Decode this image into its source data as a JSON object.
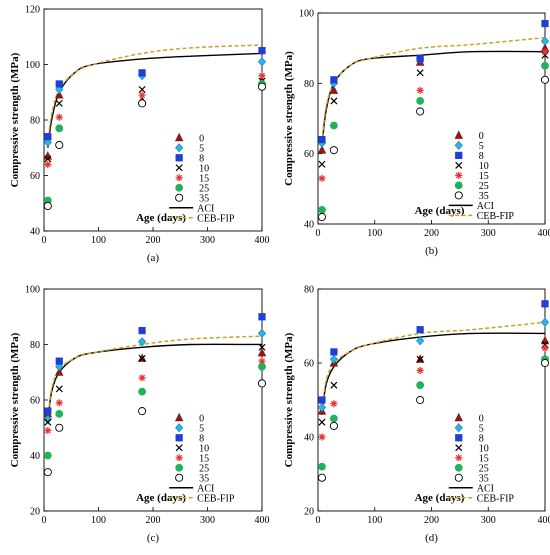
{
  "chart_data": [
    {
      "type": "scatter",
      "panel_label": "(a)",
      "xlabel": "Age (days)",
      "ylabel": "Compressive strength (MPa)",
      "xlim": [
        0,
        400
      ],
      "ylim": [
        40,
        120
      ],
      "xticks": [
        0,
        100,
        200,
        300,
        400
      ],
      "yticks": [
        40,
        60,
        80,
        100,
        120
      ],
      "grid": false,
      "legend_position": "bottom-right",
      "x": [
        7,
        28,
        180,
        400
      ],
      "series": [
        {
          "name": "0",
          "values": [
            67,
            89,
            87,
            94
          ]
        },
        {
          "name": "5",
          "values": [
            72,
            91,
            96,
            101
          ]
        },
        {
          "name": "8",
          "values": [
            74,
            93,
            97,
            105
          ]
        },
        {
          "name": "10",
          "values": [
            66,
            86,
            91,
            94
          ]
        },
        {
          "name": "15",
          "values": [
            64,
            81,
            89,
            96
          ]
        },
        {
          "name": "25",
          "values": [
            51,
            77,
            86,
            93
          ]
        },
        {
          "name": "35",
          "values": [
            49,
            71,
            86,
            92
          ]
        }
      ],
      "curves": [
        {
          "name": "ACI",
          "x": [
            7,
            14,
            28,
            56,
            90,
            180,
            270,
            400
          ],
          "y": [
            70,
            80,
            90,
            97,
            100,
            102,
            103,
            104
          ]
        },
        {
          "name": "CEB-FIP",
          "x": [
            7,
            14,
            28,
            56,
            90,
            180,
            270,
            400
          ],
          "y": [
            72,
            82,
            91,
            97,
            100,
            104,
            106,
            107
          ]
        }
      ]
    },
    {
      "type": "scatter",
      "panel_label": "(b)",
      "xlabel": "Age (days)",
      "ylabel": "Compressive strength (MPa)",
      "xlim": [
        0,
        400
      ],
      "ylim": [
        40,
        100
      ],
      "xticks": [
        0,
        100,
        200,
        300,
        400
      ],
      "yticks": [
        40,
        60,
        80,
        100
      ],
      "grid": false,
      "legend_position": "bottom-right",
      "x": [
        7,
        28,
        180,
        400
      ],
      "series": [
        {
          "name": "0",
          "values": [
            61,
            78,
            86,
            90
          ]
        },
        {
          "name": "5",
          "values": [
            63,
            80,
            87,
            92
          ]
        },
        {
          "name": "8",
          "values": [
            64,
            81,
            87,
            97
          ]
        },
        {
          "name": "10",
          "values": [
            57,
            75,
            83,
            88
          ]
        },
        {
          "name": "15",
          "values": [
            53,
            68,
            78,
            89
          ]
        },
        {
          "name": "25",
          "values": [
            44,
            68,
            75,
            85
          ]
        },
        {
          "name": "35",
          "values": [
            42,
            61,
            72,
            81
          ]
        }
      ],
      "curves": [
        {
          "name": "ACI",
          "x": [
            7,
            14,
            28,
            56,
            90,
            180,
            270,
            400
          ],
          "y": [
            62,
            72,
            80,
            85,
            87,
            88,
            89,
            89
          ]
        },
        {
          "name": "CEB-FIP",
          "x": [
            7,
            14,
            28,
            56,
            90,
            180,
            270,
            400
          ],
          "y": [
            63,
            73,
            80,
            85,
            87,
            90,
            91,
            93
          ]
        }
      ]
    },
    {
      "type": "scatter",
      "panel_label": "(c)",
      "xlabel": "Age (days)",
      "ylabel": "Compressive strength (MPa)",
      "xlim": [
        0,
        400
      ],
      "ylim": [
        20,
        100
      ],
      "xticks": [
        0,
        100,
        200,
        300,
        400
      ],
      "yticks": [
        20,
        40,
        60,
        80,
        100
      ],
      "grid": false,
      "legend_position": "bottom-right",
      "x": [
        7,
        28,
        180,
        400
      ],
      "series": [
        {
          "name": "0",
          "values": [
            55,
            70,
            75,
            77
          ]
        },
        {
          "name": "5",
          "values": [
            53,
            72,
            81,
            84
          ]
        },
        {
          "name": "8",
          "values": [
            56,
            74,
            85,
            90
          ]
        },
        {
          "name": "10",
          "values": [
            52,
            64,
            75,
            79
          ]
        },
        {
          "name": "15",
          "values": [
            49,
            59,
            68,
            74
          ]
        },
        {
          "name": "25",
          "values": [
            40,
            55,
            63,
            72
          ]
        },
        {
          "name": "35",
          "values": [
            34,
            50,
            56,
            66
          ]
        }
      ],
      "curves": [
        {
          "name": "ACI",
          "x": [
            7,
            14,
            28,
            56,
            90,
            180,
            270,
            400
          ],
          "y": [
            52,
            63,
            70,
            75,
            77,
            79,
            80,
            80
          ]
        },
        {
          "name": "CEB-FIP",
          "x": [
            7,
            14,
            28,
            56,
            90,
            180,
            270,
            400
          ],
          "y": [
            53,
            64,
            71,
            75,
            77,
            80,
            82,
            83
          ]
        }
      ]
    },
    {
      "type": "scatter",
      "panel_label": "(d)",
      "xlabel": "Age (days)",
      "ylabel": "Compressive strength (MPa)",
      "xlim": [
        0,
        400
      ],
      "ylim": [
        20,
        80
      ],
      "xticks": [
        0,
        100,
        200,
        300,
        400
      ],
      "yticks": [
        20,
        40,
        60,
        80
      ],
      "grid": false,
      "legend_position": "bottom-right",
      "x": [
        7,
        28,
        180,
        400
      ],
      "series": [
        {
          "name": "0",
          "values": [
            47,
            60,
            61,
            66
          ]
        },
        {
          "name": "5",
          "values": [
            48,
            61,
            66,
            71
          ]
        },
        {
          "name": "8",
          "values": [
            50,
            63,
            69,
            76
          ]
        },
        {
          "name": "10",
          "values": [
            44,
            54,
            61,
            65
          ]
        },
        {
          "name": "15",
          "values": [
            40,
            49,
            58,
            64
          ]
        },
        {
          "name": "25",
          "values": [
            32,
            45,
            54,
            61
          ]
        },
        {
          "name": "35",
          "values": [
            29,
            43,
            50,
            60
          ]
        }
      ],
      "curves": [
        {
          "name": "ACI",
          "x": [
            7,
            14,
            28,
            56,
            90,
            180,
            270,
            400
          ],
          "y": [
            46,
            54,
            59,
            63,
            65,
            67,
            68,
            68
          ]
        },
        {
          "name": "CEB-FIP",
          "x": [
            7,
            14,
            28,
            56,
            90,
            180,
            270,
            400
          ],
          "y": [
            47,
            55,
            60,
            63,
            65,
            68,
            69,
            71
          ]
        }
      ]
    }
  ],
  "styles": {
    "markers": [
      {
        "series": "0",
        "shape": "triangle",
        "fill": "#8b1a1a",
        "stroke": "#8b1a1a"
      },
      {
        "series": "5",
        "shape": "diamond",
        "fill": "#29b6e8",
        "stroke": "#1f8fb8"
      },
      {
        "series": "8",
        "shape": "square",
        "fill": "#1f3fd6",
        "stroke": "#1f3fd6"
      },
      {
        "series": "10",
        "shape": "x",
        "fill": "none",
        "stroke": "#000000"
      },
      {
        "series": "15",
        "shape": "asterisk",
        "fill": "none",
        "stroke": "#e8312f"
      },
      {
        "series": "25",
        "shape": "circle",
        "fill": "#22b25a",
        "stroke": "#22b25a"
      },
      {
        "series": "35",
        "shape": "open-circle",
        "fill": "#ffffff",
        "stroke": "#000000"
      }
    ],
    "aci_color": "#000000",
    "ceb_color": "#c9a227"
  }
}
